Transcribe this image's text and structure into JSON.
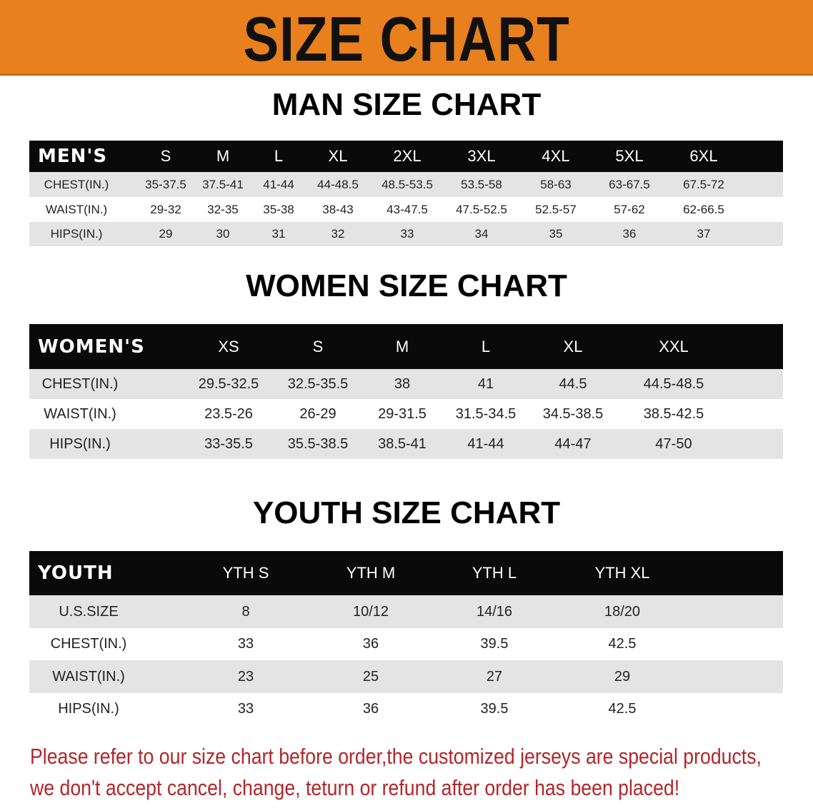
{
  "banner_title": "SIZE CHART",
  "colors": {
    "banner": "#e8801e",
    "header_row": "#0a0a0a",
    "stripe": "#e4e4e4",
    "note": "#b3262a"
  },
  "men": {
    "title": "MAN SIZE CHART",
    "header": [
      "MEN'S",
      "S",
      "M",
      "L",
      "XL",
      "2XL",
      "3XL",
      "4XL",
      "5XL",
      "6XL"
    ],
    "rows": [
      [
        "CHEST(IN.)",
        "35-37.5",
        "37.5-41",
        "41-44",
        "44-48.5",
        "48.5-53.5",
        "53.5-58",
        "58-63",
        "63-67.5",
        "67.5-72"
      ],
      [
        "WAIST(IN.)",
        "29-32",
        "32-35",
        "35-38",
        "38-43",
        "43-47.5",
        "47.5-52.5",
        "52.5-57",
        "57-62",
        "62-66.5"
      ],
      [
        "HIPS(IN.)",
        "29",
        "30",
        "31",
        "32",
        "33",
        "34",
        "35",
        "36",
        "37"
      ]
    ]
  },
  "women": {
    "title": "WOMEN SIZE CHART",
    "header": [
      "WOMEN'S",
      "XS",
      "S",
      "M",
      "L",
      "XL",
      "XXL"
    ],
    "rows": [
      [
        "CHEST(IN.)",
        "29.5-32.5",
        "32.5-35.5",
        "38",
        "41",
        "44.5",
        "44.5-48.5"
      ],
      [
        "WAIST(IN.)",
        "23.5-26",
        "26-29",
        "29-31.5",
        "31.5-34.5",
        "34.5-38.5",
        "38.5-42.5"
      ],
      [
        "HIPS(IN.)",
        "33-35.5",
        "35.5-38.5",
        "38.5-41",
        "41-44",
        "44-47",
        "47-50"
      ]
    ]
  },
  "youth": {
    "title": "YOUTH SIZE CHART",
    "header": [
      "YOUTH",
      "YTH S",
      "YTH M",
      "YTH L",
      "YTH XL"
    ],
    "rows": [
      [
        "U.S.SIZE",
        "8",
        "10/12",
        "14/16",
        "18/20"
      ],
      [
        "CHEST(IN.)",
        "33",
        "36",
        "39.5",
        "42.5"
      ],
      [
        "WAIST(IN.)",
        "23",
        "25",
        "27",
        "29"
      ],
      [
        "HIPS(IN.)",
        "33",
        "36",
        "39.5",
        "42.5"
      ]
    ]
  },
  "note": {
    "line1": "Please refer to our size chart before order,the customized jerseys are special products,",
    "line2": "we don't accept cancel, change, teturn or refund after order has been placed!"
  }
}
